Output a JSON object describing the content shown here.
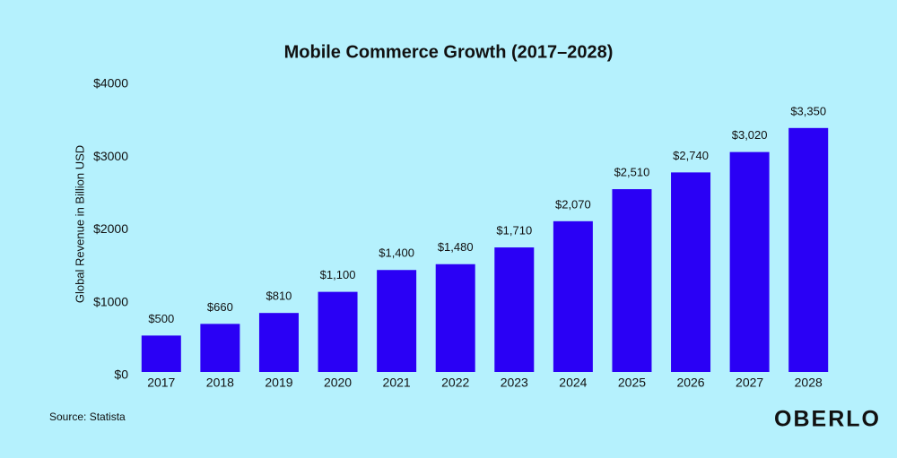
{
  "chart_data": {
    "type": "bar",
    "title": "Mobile Commerce Growth (2017–2028)",
    "y_label": "Global Revenue in Billion USD",
    "categories": [
      "2017",
      "2018",
      "2019",
      "2020",
      "2021",
      "2022",
      "2023",
      "2024",
      "2025",
      "2026",
      "2027",
      "2028"
    ],
    "values": [
      500,
      660,
      810,
      1100,
      1400,
      1480,
      1710,
      2070,
      2510,
      2740,
      3020,
      3350
    ],
    "value_labels": [
      "$500",
      "$660",
      "$810",
      "$1,100",
      "$1,400",
      "$1,480",
      "$1,710",
      "$2,070",
      "$2,510",
      "$2,740",
      "$3,020",
      "$3,350"
    ],
    "color": "#2a00f5",
    "ylim": [
      0,
      4000
    ],
    "yticks": [
      {
        "value": 0,
        "label": "$0"
      },
      {
        "value": 1000,
        "label": "$1000"
      },
      {
        "value": 2000,
        "label": "$2000"
      },
      {
        "value": 3000,
        "label": "$3000"
      },
      {
        "value": 4000,
        "label": "$4000"
      }
    ],
    "grid": false
  },
  "source": "Source: Statista",
  "brand": "OBERLO"
}
